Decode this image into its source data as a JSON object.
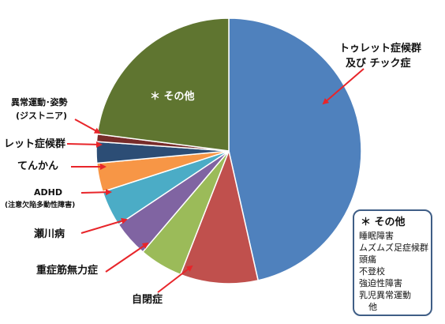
{
  "chart_data": {
    "type": "pie",
    "slices": [
      {
        "label": "トゥレット症候群 及び チック症",
        "value": 46.5,
        "color": "#4f81bd"
      },
      {
        "label": "自閉症",
        "value": 9.5,
        "color": "#c0504d"
      },
      {
        "label": "重症筋無力症",
        "value": 5.3,
        "color": "#9bbb59"
      },
      {
        "label": "瀬川病",
        "value": 4.4,
        "color": "#8064a2"
      },
      {
        "label": "ADHD (注意欠陥多動性障害)",
        "value": 4.4,
        "color": "#4bacc6"
      },
      {
        "label": "てんかん",
        "value": 3.5,
        "color": "#f79646"
      },
      {
        "label": "レット症候群",
        "value": 2.6,
        "color": "#2c4d75"
      },
      {
        "label": "異常運動･姿勢 (ジストニア)",
        "value": 0.9,
        "color": "#772c2a"
      },
      {
        "label": "＊ その他",
        "value": 23.0,
        "color": "#5f7530"
      }
    ],
    "annotations": {
      "tourette_line1": "トゥレット症候群",
      "tourette_line2": "及び チック症",
      "autism": "自閉症",
      "myasthenia": "重症筋無力症",
      "segawa": "瀬川病",
      "adhd_line1": "ADHD",
      "adhd_line2": "(注意欠陥多動性障害)",
      "epilepsy": "てんかん",
      "rett": "レット症候群",
      "dystonia_line1": "異常運動･姿勢",
      "dystonia_line2": "(ジストニア)",
      "other_in_slice": "＊ その他"
    },
    "other_note": {
      "title": "＊ その他",
      "items": [
        "睡眠障害",
        "ムズムズ足症候群",
        "頭痛",
        "不登校",
        "強迫性障害",
        "乳児異常運動",
        "他"
      ]
    },
    "legend": "none"
  }
}
